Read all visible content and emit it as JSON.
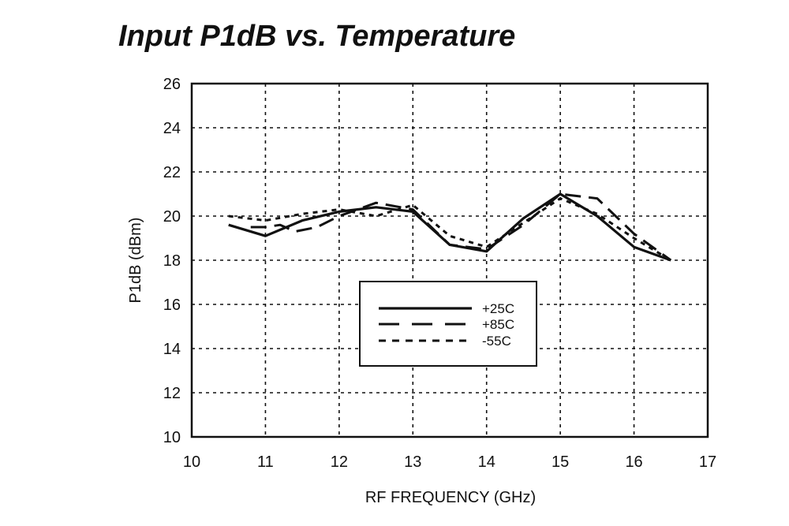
{
  "chart_data": {
    "type": "line",
    "title": "Input P1dB vs. Temperature",
    "xlabel": "RF FREQUENCY (GHz)",
    "ylabel": "P1dB  (dBm)",
    "xlim": [
      10,
      17
    ],
    "ylim": [
      10,
      26
    ],
    "xticks": [
      10,
      11,
      12,
      13,
      14,
      15,
      16,
      17
    ],
    "yticks": [
      10,
      12,
      14,
      16,
      18,
      20,
      22,
      24,
      26
    ],
    "grid": true,
    "legend_position": "center",
    "colors": {
      "line": "#111111",
      "grid": "#111111",
      "background": "#ffffff"
    },
    "series": [
      {
        "name": "+25C",
        "style": "solid",
        "x": [
          10.5,
          11.0,
          11.5,
          12.0,
          12.5,
          13.0,
          13.5,
          14.0,
          14.5,
          15.0,
          15.5,
          16.0,
          16.5
        ],
        "y": [
          19.6,
          19.1,
          19.8,
          20.2,
          20.4,
          20.2,
          18.7,
          18.4,
          19.9,
          21.0,
          20.0,
          18.6,
          18.0
        ]
      },
      {
        "name": "+85C",
        "style": "dashed",
        "x": [
          10.8,
          11.0,
          11.2,
          11.4,
          11.7,
          12.0,
          12.5,
          13.0,
          13.5,
          14.0,
          14.5,
          15.0,
          15.5,
          16.0,
          16.5
        ],
        "y": [
          19.5,
          19.5,
          19.6,
          19.3,
          19.5,
          20.0,
          20.6,
          20.3,
          18.7,
          18.5,
          19.6,
          21.0,
          20.8,
          19.2,
          18.0
        ]
      },
      {
        "name": "-55C",
        "style": "dotted",
        "x": [
          10.5,
          11.0,
          11.5,
          12.0,
          12.5,
          13.0,
          13.5,
          14.0,
          14.5,
          15.0,
          15.5,
          16.0,
          16.5
        ],
        "y": [
          20.0,
          19.8,
          20.1,
          20.3,
          20.0,
          20.5,
          19.1,
          18.6,
          19.7,
          20.8,
          20.1,
          19.0,
          18.0
        ]
      }
    ]
  }
}
